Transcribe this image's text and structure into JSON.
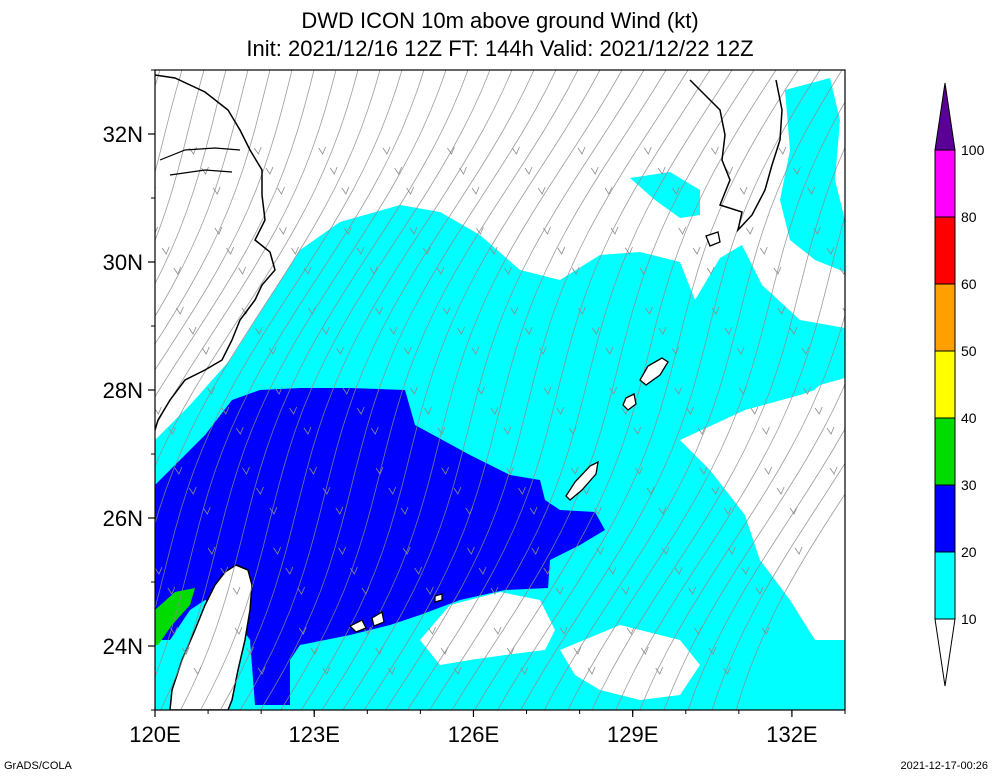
{
  "title": {
    "line1": "DWD ICON 10m above ground Wind (kt)",
    "line2": "Init: 2021/12/16 12Z  FT: 144h  Valid: 2021/12/22 12Z"
  },
  "footer": {
    "left": "GrADS/COLA",
    "right": "2021-12-17-00:26"
  },
  "map": {
    "lon_range": [
      120,
      133
    ],
    "lat_range": [
      23,
      33
    ],
    "lon_ticks": [
      {
        "value": 120,
        "label": "120E"
      },
      {
        "value": 123,
        "label": "123E"
      },
      {
        "value": 126,
        "label": "126E"
      },
      {
        "value": 129,
        "label": "129E"
      },
      {
        "value": 132,
        "label": "132E"
      }
    ],
    "lat_ticks": [
      {
        "value": 24,
        "label": "24N"
      },
      {
        "value": 26,
        "label": "26N"
      },
      {
        "value": 28,
        "label": "28N"
      },
      {
        "value": 30,
        "label": "30N"
      },
      {
        "value": 32,
        "label": "32N"
      }
    ]
  },
  "colorbar": {
    "levels": [
      {
        "label": "10"
      },
      {
        "label": "20",
        "color": "#00ffff"
      },
      {
        "label": "30",
        "color": "#0000ff"
      },
      {
        "label": "40",
        "color": "#00dc00"
      },
      {
        "label": "50",
        "color": "#ffff00"
      },
      {
        "label": "60",
        "color": "#ffa000"
      },
      {
        "label": "80",
        "color": "#ff0000"
      },
      {
        "label": "100",
        "color": "#ff00ff"
      }
    ],
    "top_color": "#5a0096",
    "bottom_color": "#ffffff"
  },
  "colors": {
    "band_10_20": "#00ffff",
    "band_20_30": "#0000ff",
    "band_30_40": "#00dc00",
    "streamline": "#8c8c8c",
    "coast": "#000000"
  }
}
